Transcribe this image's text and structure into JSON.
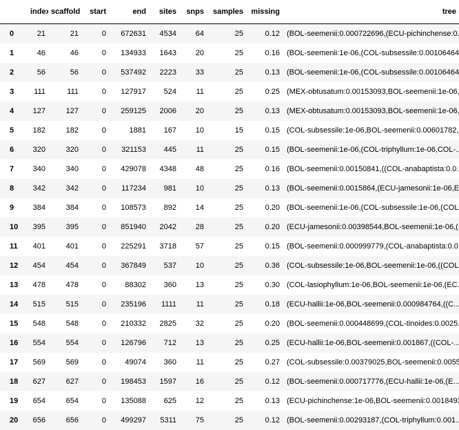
{
  "columns": [
    "",
    "index",
    "scaffold",
    "start",
    "end",
    "sites",
    "snps",
    "samples",
    "missing",
    "tree"
  ],
  "rows": [
    {
      "idx": "0",
      "index": "21",
      "scaffold": "21",
      "start": "0",
      "end": "672631",
      "sites": "4534",
      "snps": "64",
      "samples": "25",
      "missing": "0.12",
      "tree": "(BOL-seemenii:0.000722696,(ECU-pichinchense:0.000..."
    },
    {
      "idx": "1",
      "index": "46",
      "scaffold": "46",
      "start": "0",
      "end": "134933",
      "sites": "1643",
      "snps": "20",
      "samples": "25",
      "missing": "0.16",
      "tree": "(BOL-seemenii:1e-06,(COL-subsessile:0.00106464..."
    },
    {
      "idx": "2",
      "index": "56",
      "scaffold": "56",
      "start": "0",
      "end": "537492",
      "sites": "2223",
      "snps": "33",
      "samples": "25",
      "missing": "0.13",
      "tree": "(BOL-seemenii:1e-06,(COL-subsessile:0.00106464..."
    },
    {
      "idx": "3",
      "index": "111",
      "scaffold": "111",
      "start": "0",
      "end": "127917",
      "sites": "524",
      "snps": "11",
      "samples": "25",
      "missing": "0.25",
      "tree": "(MEX-obtusatum:0.00153093,BOL-seemenii:1e-06,(..."
    },
    {
      "idx": "4",
      "index": "127",
      "scaffold": "127",
      "start": "0",
      "end": "259125",
      "sites": "2006",
      "snps": "20",
      "samples": "25",
      "missing": "0.13",
      "tree": "(MEX-obtusatum:0.00153093,BOL-seemenii:1e-06,(..."
    },
    {
      "idx": "5",
      "index": "182",
      "scaffold": "182",
      "start": "0",
      "end": "1881",
      "sites": "167",
      "snps": "10",
      "samples": "15",
      "missing": "0.15",
      "tree": "(COL-subsessile:1e-06,BOL-seemenii:0.00601782,..."
    },
    {
      "idx": "6",
      "index": "320",
      "scaffold": "320",
      "start": "0",
      "end": "321153",
      "sites": "445",
      "snps": "11",
      "samples": "25",
      "missing": "0.15",
      "tree": "(BOL-seemenii:1e-06,(COL-triphyllum:1e-06,COL-..."
    },
    {
      "idx": "7",
      "index": "340",
      "scaffold": "340",
      "start": "0",
      "end": "429078",
      "sites": "4348",
      "snps": "48",
      "samples": "25",
      "missing": "0.16",
      "tree": "(BOL-seemenii:0.00150841,((COL-anabaptista:0.0..."
    },
    {
      "idx": "8",
      "index": "342",
      "scaffold": "342",
      "start": "0",
      "end": "117234",
      "sites": "981",
      "snps": "10",
      "samples": "25",
      "missing": "0.13",
      "tree": "(BOL-seemenii:0.0015864,(ECU-jamesonii:1e-06,E..."
    },
    {
      "idx": "9",
      "index": "384",
      "scaffold": "384",
      "start": "0",
      "end": "108573",
      "sites": "892",
      "snps": "14",
      "samples": "25",
      "missing": "0.20",
      "tree": "(BOL-seemenii:1e-06,(COL-subsessile:1e-06,(COL..."
    },
    {
      "idx": "10",
      "index": "395",
      "scaffold": "395",
      "start": "0",
      "end": "851940",
      "sites": "2042",
      "snps": "28",
      "samples": "25",
      "missing": "0.20",
      "tree": "(ECU-jamesonii:0.00398544,BOL-seemenii:1e-06,(..."
    },
    {
      "idx": "11",
      "index": "401",
      "scaffold": "401",
      "start": "0",
      "end": "225291",
      "sites": "3718",
      "snps": "57",
      "samples": "25",
      "missing": "0.15",
      "tree": "(BOL-seemenii:0.000999779,(COL-anabaptista:0.0..."
    },
    {
      "idx": "12",
      "index": "454",
      "scaffold": "454",
      "start": "0",
      "end": "367849",
      "sites": "537",
      "snps": "10",
      "samples": "25",
      "missing": "0.36",
      "tree": "(COL-subsessile:1e-06,BOL-seemenii:1e-06,((COL..."
    },
    {
      "idx": "13",
      "index": "478",
      "scaffold": "478",
      "start": "0",
      "end": "88302",
      "sites": "360",
      "snps": "13",
      "samples": "25",
      "missing": "0.30",
      "tree": "(COL-lasiophyllum:1e-06,BOL-seemenii:1e-06,(EC..."
    },
    {
      "idx": "14",
      "index": "515",
      "scaffold": "515",
      "start": "0",
      "end": "235196",
      "sites": "1111",
      "snps": "11",
      "samples": "25",
      "missing": "0.18",
      "tree": "(ECU-hallii:1e-06,BOL-seemenii:0.000984764,((C..."
    },
    {
      "idx": "15",
      "index": "548",
      "scaffold": "548",
      "start": "0",
      "end": "210332",
      "sites": "2825",
      "snps": "32",
      "samples": "25",
      "missing": "0.20",
      "tree": "(BOL-seemenii:0.000448699,(COL-tinoides:0.0025..."
    },
    {
      "idx": "16",
      "index": "554",
      "scaffold": "554",
      "start": "0",
      "end": "126796",
      "sites": "712",
      "snps": "13",
      "samples": "25",
      "missing": "0.25",
      "tree": "(ECU-hallii:1e-06,BOL-seemenii:0.001867,((COL-..."
    },
    {
      "idx": "17",
      "index": "569",
      "scaffold": "569",
      "start": "0",
      "end": "49074",
      "sites": "360",
      "snps": "11",
      "samples": "25",
      "missing": "0.27",
      "tree": "(COL-subsessile:0.00379025,BOL-seemenii:0.0055..."
    },
    {
      "idx": "18",
      "index": "627",
      "scaffold": "627",
      "start": "0",
      "end": "198453",
      "sites": "1597",
      "snps": "16",
      "samples": "25",
      "missing": "0.12",
      "tree": "(BOL-seemenii:0.000717776,(ECU-hallii:1e-06,(E..."
    },
    {
      "idx": "19",
      "index": "654",
      "scaffold": "654",
      "start": "0",
      "end": "135088",
      "sites": "625",
      "snps": "12",
      "samples": "25",
      "missing": "0.13",
      "tree": "(ECU-pichinchense:1e-06,BOL-seemenii:0.0018493..."
    },
    {
      "idx": "20",
      "index": "656",
      "scaffold": "656",
      "start": "0",
      "end": "499297",
      "sites": "5311",
      "snps": "75",
      "samples": "25",
      "missing": "0.12",
      "tree": "(BOL-seemenii:0.00293187,(COL-triphyllum:0.001..."
    }
  ]
}
